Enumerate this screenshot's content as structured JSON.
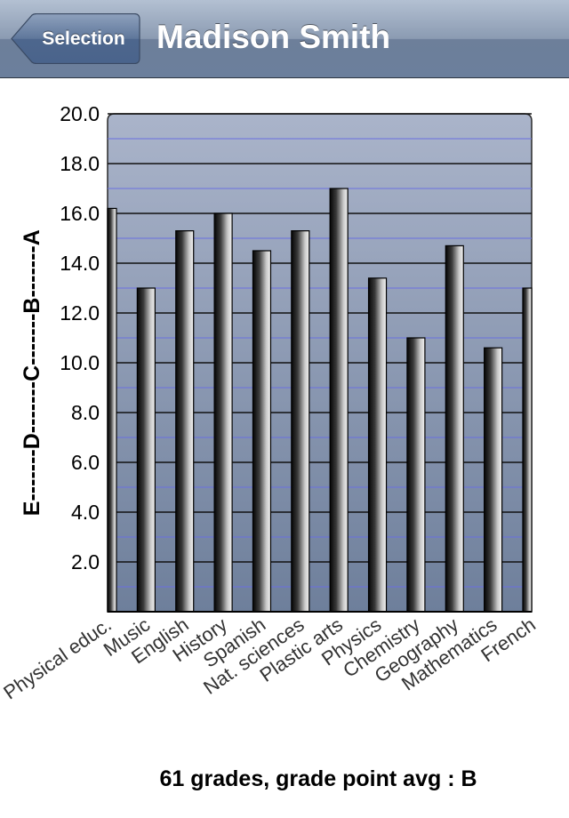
{
  "nav": {
    "back_label": "Selection",
    "title": "Madison Smith"
  },
  "colors": {
    "nav_top": "#b3c0d2",
    "nav_bottom": "#6b7f9c",
    "plot_top": "#aab4ca",
    "plot_bottom": "#6e7f9b",
    "major_grid": "#111111",
    "minor_grid": "#6a6fe0"
  },
  "chart_data": {
    "type": "bar",
    "categories": [
      "Physical educ.",
      "Music",
      "English",
      "History",
      "Spanish",
      "Nat. sciences",
      "Plastic arts",
      "Physics",
      "Chemistry",
      "Geography",
      "Mathematics",
      "French"
    ],
    "values": [
      16.2,
      13.0,
      15.3,
      16.0,
      14.5,
      15.3,
      17.0,
      13.4,
      11.0,
      14.7,
      10.6,
      13.0
    ],
    "ylim": [
      0,
      20
    ],
    "yticks": [
      "2.0",
      "4.0",
      "6.0",
      "8.0",
      "10.0",
      "12.0",
      "14.0",
      "16.0",
      "18.0",
      "20.0"
    ],
    "ylabel": "E-------D-------C-------B-------A",
    "grid": true
  },
  "footer": {
    "summary": "61 grades, grade point avg : B"
  }
}
